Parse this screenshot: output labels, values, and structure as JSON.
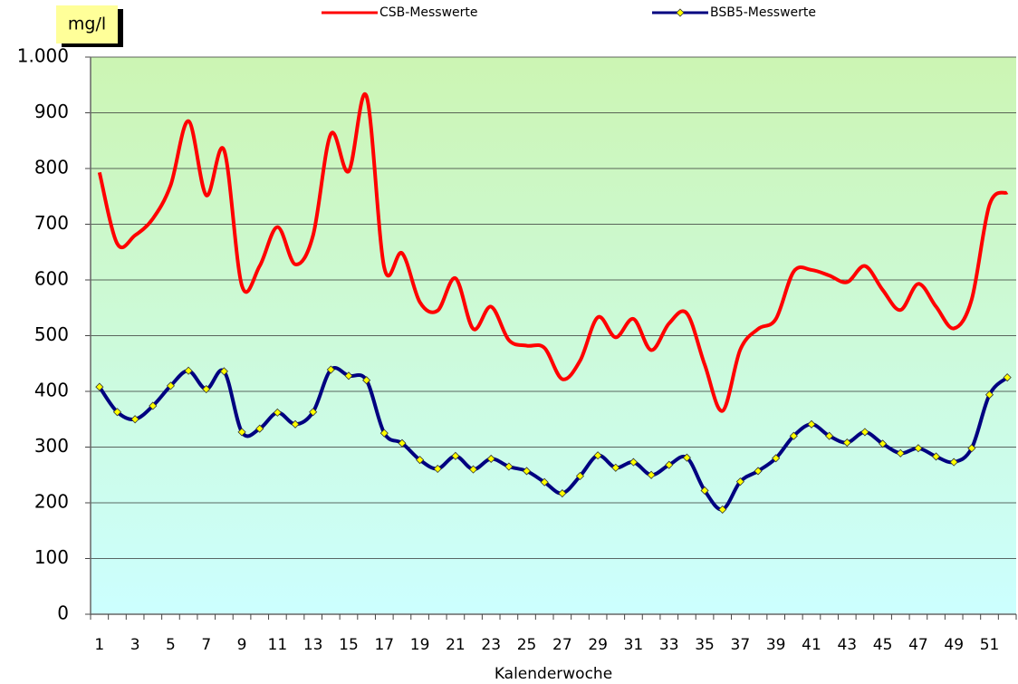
{
  "chart_data": {
    "type": "line",
    "y_label": "mg/l",
    "x_label": "Kalenderwoche",
    "legend": "top",
    "grid": true,
    "categories": [
      "1",
      null,
      "3",
      null,
      "5",
      null,
      "7",
      null,
      "9",
      null,
      "11",
      null,
      "13",
      null,
      "15",
      null,
      "17",
      null,
      "19",
      null,
      "21",
      null,
      "23",
      null,
      "25",
      null,
      "27",
      null,
      "29",
      null,
      "31",
      null,
      "33",
      null,
      "35",
      null,
      "37",
      null,
      "39",
      null,
      "41",
      null,
      "43",
      null,
      "45",
      null,
      "47",
      null,
      "49",
      null,
      "51",
      null
    ],
    "ylim": [
      0,
      1000
    ],
    "yticks": [
      0,
      100,
      200,
      300,
      400,
      500,
      600,
      700,
      800,
      900,
      {
        "value": 1000,
        "label": "1.000"
      }
    ],
    "series": [
      {
        "name": "CSB-Messwerte",
        "color": "#ff0000",
        "marker": false,
        "values": [
          793,
          665,
          680,
          710,
          770,
          885,
          752,
          833,
          590,
          625,
          695,
          628,
          680,
          862,
          795,
          930,
          622,
          648,
          560,
          545,
          603,
          512,
          552,
          492,
          482,
          478,
          422,
          455,
          533,
          497,
          530,
          474,
          522,
          540,
          448,
          365,
          475,
          512,
          530,
          615,
          618,
          608,
          596,
          625,
          582,
          546,
          593,
          552,
          513,
          565,
          735,
          757
        ]
      },
      {
        "name": "BSB5-Messwerte",
        "color": "#000080",
        "marker": true,
        "values": [
          408,
          363,
          350,
          374,
          410,
          437,
          404,
          436,
          327,
          333,
          362,
          341,
          363,
          439,
          428,
          420,
          325,
          307,
          277,
          261,
          284,
          260,
          279,
          265,
          257,
          237,
          217,
          248,
          285,
          263,
          273,
          250,
          268,
          281,
          222,
          188,
          238,
          257,
          280,
          320,
          341,
          320,
          308,
          327,
          306,
          289,
          298,
          283,
          273,
          298,
          394,
          425
        ]
      }
    ]
  }
}
